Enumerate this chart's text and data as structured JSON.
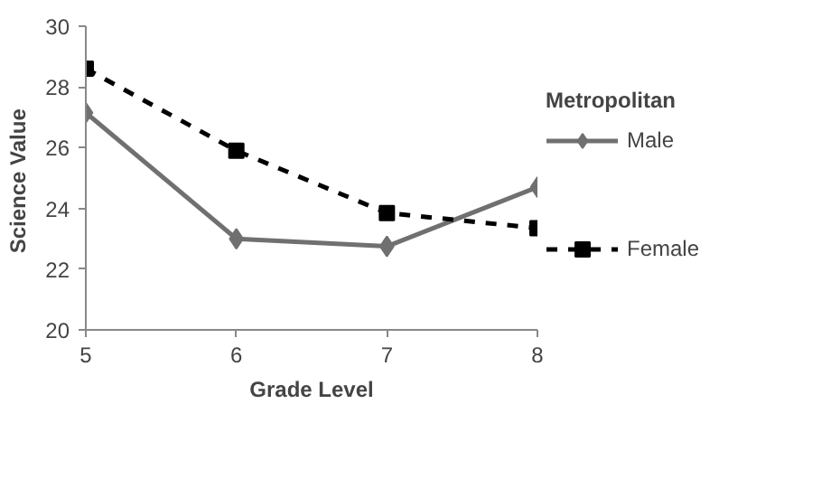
{
  "chart_data": {
    "type": "line",
    "xlabel": "Grade Level",
    "ylabel": "Science  Value",
    "legend_title": "Metropolitan",
    "x": [
      5,
      6,
      7,
      8
    ],
    "xlim": [
      5,
      8
    ],
    "xticks": [
      5,
      6,
      7,
      8
    ],
    "ylim": [
      20,
      30
    ],
    "yticks": [
      20,
      22,
      24,
      26,
      28,
      30
    ],
    "grid": false,
    "legend": "right",
    "series": [
      {
        "name": "Male",
        "color": "#707070",
        "marker": "diamond",
        "line_style": "solid",
        "values": [
          27.15,
          23.0,
          22.75,
          24.7
        ]
      },
      {
        "name": "Female",
        "color": "#000000",
        "marker": "square",
        "line_style": "dashed",
        "values": [
          28.6,
          25.9,
          23.85,
          23.35
        ]
      }
    ]
  }
}
